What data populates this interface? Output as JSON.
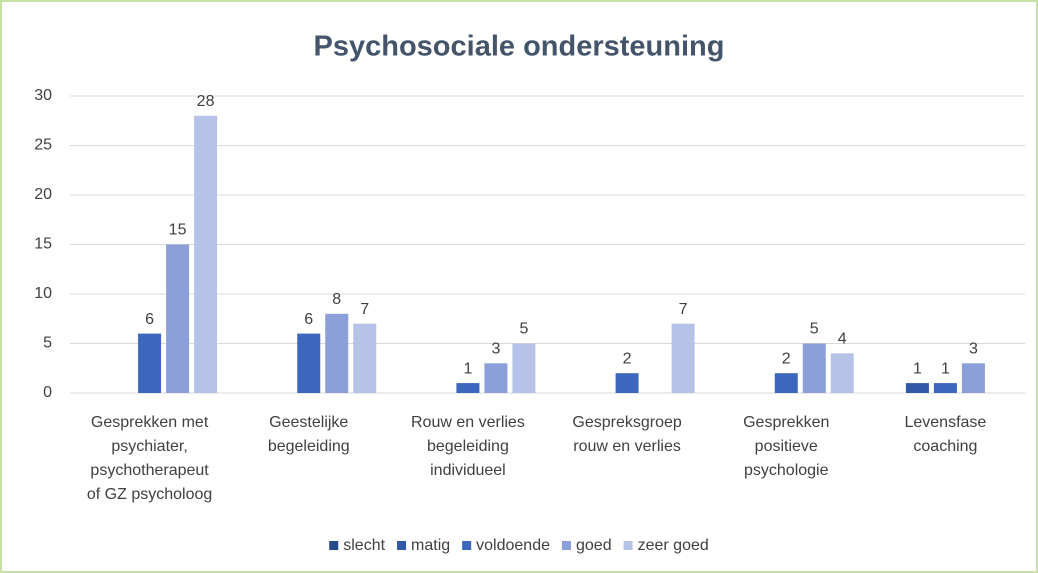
{
  "chart_data": {
    "type": "bar",
    "title": "Psychosociale ondersteuning",
    "categories": [
      [
        "Gesprekken met",
        "psychiater,",
        "psychotherapeut",
        "of GZ psycholoog"
      ],
      [
        "Geestelijke",
        "begeleiding"
      ],
      [
        "Rouw en verlies",
        "begeleiding",
        "individueel"
      ],
      [
        "Gespreksgroep",
        "rouw en verlies"
      ],
      [
        "Gesprekken",
        "positieve",
        "psychologie"
      ],
      [
        "Levensfase",
        "coaching"
      ]
    ],
    "series": [
      {
        "name": "slecht",
        "color": "#264a8a",
        "values": [
          0,
          0,
          0,
          0,
          0,
          0
        ]
      },
      {
        "name": "matig",
        "color": "#3059a8",
        "values": [
          0,
          0,
          0,
          0,
          0,
          1
        ]
      },
      {
        "name": "voldoende",
        "color": "#3d66bd",
        "values": [
          6,
          6,
          1,
          2,
          2,
          1
        ]
      },
      {
        "name": "goed",
        "color": "#8b9fd8",
        "values": [
          15,
          8,
          3,
          0,
          5,
          3
        ]
      },
      {
        "name": "zeer goed",
        "color": "#b6c2e7",
        "values": [
          28,
          7,
          5,
          7,
          4,
          0
        ]
      }
    ],
    "ylim": [
      0,
      30
    ],
    "yticks": [
      0,
      5,
      10,
      15,
      20,
      25,
      30
    ],
    "grid": true,
    "legend": "bottom"
  }
}
